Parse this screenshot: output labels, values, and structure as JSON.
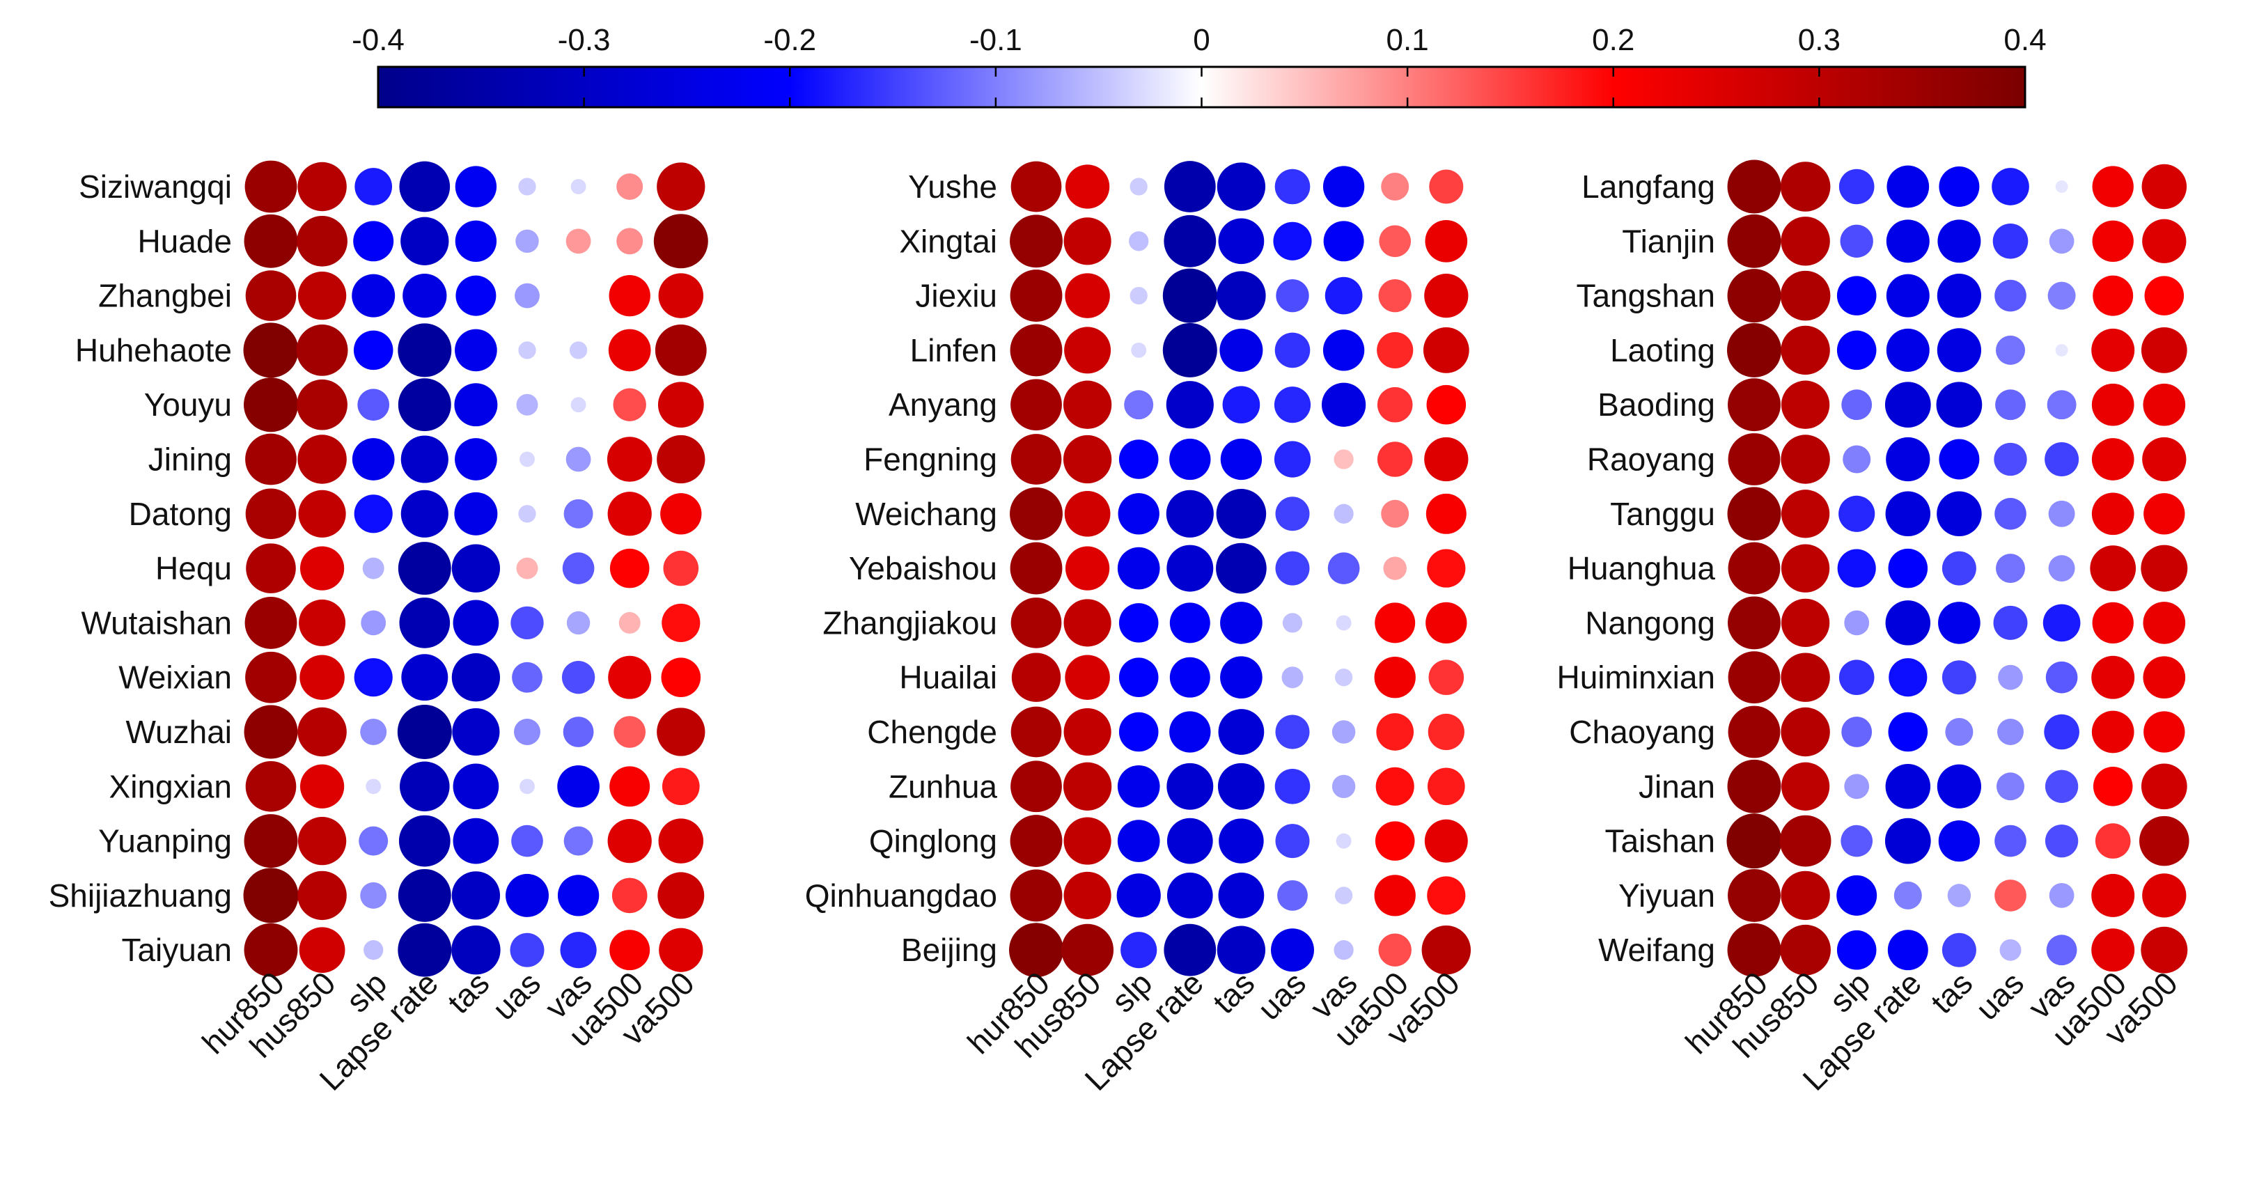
{
  "chart_data": {
    "type": "bubble-correlation-matrix",
    "title": "",
    "colorbar": {
      "range": [
        -0.4,
        0.4
      ],
      "ticks": [
        "-0.4",
        "-0.3",
        "-0.2",
        "-0.1",
        "0",
        "0.1",
        "0.2",
        "0.3",
        "0.4"
      ],
      "tick_values": [
        -0.4,
        -0.3,
        -0.2,
        -0.1,
        0,
        0.1,
        0.2,
        0.3,
        0.4
      ],
      "colors": {
        "negative_end": "#00008a",
        "negative_mid": "#0000ff",
        "neutral": "#ffffff",
        "positive_mid": "#ff0000",
        "positive_end": "#7a0000"
      },
      "legend_position": "top"
    },
    "variables": [
      "hur850",
      "hus850",
      "slp",
      "Lapse rate",
      "tas",
      "uas",
      "vas",
      "ua500",
      "va500"
    ],
    "panels": [
      {
        "name": "left",
        "stations": [
          "Siziwangqi",
          "Huade",
          "Zhangbei",
          "Huhehaote",
          "Youyu",
          "Jining",
          "Datong",
          "Hequ",
          "Wutaishan",
          "Weixian",
          "Wuzhai",
          "Xingxian",
          "Yuanping",
          "Shijiazhuang",
          "Taiyuan"
        ],
        "values": [
          [
            0.35,
            0.31,
            -0.18,
            -0.33,
            -0.22,
            -0.04,
            -0.03,
            0.09,
            0.3
          ],
          [
            0.37,
            0.33,
            -0.21,
            -0.3,
            -0.22,
            -0.07,
            0.08,
            0.09,
            0.38
          ],
          [
            0.33,
            0.3,
            -0.24,
            -0.25,
            -0.21,
            -0.08,
            0.0,
            0.22,
            0.26
          ],
          [
            0.39,
            0.34,
            -0.2,
            -0.37,
            -0.23,
            -0.04,
            -0.04,
            0.23,
            0.34
          ],
          [
            0.38,
            0.33,
            -0.13,
            -0.36,
            -0.24,
            -0.06,
            -0.03,
            0.14,
            0.27
          ],
          [
            0.34,
            0.31,
            -0.23,
            -0.29,
            -0.23,
            -0.03,
            -0.08,
            0.26,
            0.3
          ],
          [
            0.33,
            0.29,
            -0.19,
            -0.29,
            -0.24,
            -0.04,
            -0.11,
            0.25,
            0.22
          ],
          [
            0.32,
            0.25,
            -0.06,
            -0.36,
            -0.3,
            0.06,
            -0.13,
            0.2,
            0.16
          ],
          [
            0.35,
            0.28,
            -0.08,
            -0.33,
            -0.27,
            -0.14,
            -0.07,
            0.06,
            0.19
          ],
          [
            0.34,
            0.26,
            -0.19,
            -0.28,
            -0.3,
            -0.12,
            -0.14,
            0.24,
            0.2
          ],
          [
            0.37,
            0.31,
            -0.09,
            -0.38,
            -0.29,
            -0.09,
            -0.12,
            0.13,
            0.3
          ],
          [
            0.33,
            0.25,
            -0.03,
            -0.32,
            -0.27,
            -0.03,
            -0.23,
            0.21,
            0.18
          ],
          [
            0.37,
            0.3,
            -0.11,
            -0.34,
            -0.27,
            -0.13,
            -0.11,
            0.25,
            0.26
          ],
          [
            0.39,
            0.31,
            -0.09,
            -0.36,
            -0.3,
            -0.24,
            -0.22,
            0.16,
            0.28
          ],
          [
            0.37,
            0.27,
            -0.05,
            -0.37,
            -0.31,
            -0.15,
            -0.17,
            0.21,
            0.25
          ]
        ]
      },
      {
        "name": "middle",
        "stations": [
          "Yushe",
          "Xingtai",
          "Jiexiu",
          "Linfen",
          "Anyang",
          "Fengning",
          "Weichang",
          "Yebaishou",
          "Zhangjiakou",
          "Huailai",
          "Chengde",
          "Zunhua",
          "Qinglong",
          "Qinhuangdao",
          "Beijing"
        ],
        "values": [
          [
            0.33,
            0.25,
            -0.04,
            -0.34,
            -0.3,
            -0.16,
            -0.22,
            0.1,
            0.15
          ],
          [
            0.36,
            0.29,
            -0.05,
            -0.35,
            -0.27,
            -0.19,
            -0.21,
            0.13,
            0.23
          ],
          [
            0.35,
            0.26,
            -0.04,
            -0.38,
            -0.31,
            -0.14,
            -0.18,
            0.14,
            0.25
          ],
          [
            0.35,
            0.28,
            -0.03,
            -0.38,
            -0.24,
            -0.16,
            -0.22,
            0.17,
            0.27
          ],
          [
            0.34,
            0.3,
            -0.11,
            -0.29,
            -0.18,
            -0.17,
            -0.25,
            0.16,
            0.2
          ],
          [
            0.33,
            0.3,
            -0.2,
            -0.22,
            -0.22,
            -0.17,
            0.05,
            0.16,
            0.25
          ],
          [
            0.36,
            0.27,
            -0.22,
            -0.29,
            -0.32,
            -0.15,
            -0.05,
            0.1,
            0.21
          ],
          [
            0.35,
            0.25,
            -0.23,
            -0.28,
            -0.33,
            -0.15,
            -0.13,
            0.07,
            0.19
          ],
          [
            0.33,
            0.29,
            -0.2,
            -0.21,
            -0.23,
            -0.05,
            -0.03,
            0.21,
            0.22
          ],
          [
            0.31,
            0.26,
            -0.2,
            -0.21,
            -0.23,
            -0.06,
            -0.04,
            0.22,
            0.16
          ],
          [
            0.33,
            0.29,
            -0.2,
            -0.22,
            -0.27,
            -0.15,
            -0.07,
            0.18,
            0.17
          ],
          [
            0.34,
            0.3,
            -0.23,
            -0.28,
            -0.28,
            -0.16,
            -0.07,
            0.19,
            0.18
          ],
          [
            0.35,
            0.29,
            -0.23,
            -0.27,
            -0.26,
            -0.15,
            -0.03,
            0.2,
            0.24
          ],
          [
            0.35,
            0.29,
            -0.25,
            -0.27,
            -0.27,
            -0.12,
            -0.04,
            0.22,
            0.19
          ],
          [
            0.38,
            0.35,
            -0.17,
            -0.35,
            -0.3,
            -0.24,
            -0.05,
            0.14,
            0.31
          ]
        ]
      },
      {
        "name": "right",
        "stations": [
          "Langfang",
          "Tianjin",
          "Tangshan",
          "Laoting",
          "Baoding",
          "Raoyang",
          "Tanggu",
          "Huanghua",
          "Nangong",
          "Huiminxian",
          "Chaoyang",
          "Jinan",
          "Taishan",
          "Yiyuan",
          "Weifang"
        ],
        "values": [
          [
            0.37,
            0.32,
            -0.16,
            -0.23,
            -0.21,
            -0.18,
            -0.02,
            0.22,
            0.26
          ],
          [
            0.37,
            0.31,
            -0.14,
            -0.24,
            -0.24,
            -0.16,
            -0.08,
            0.22,
            0.25
          ],
          [
            0.37,
            0.32,
            -0.2,
            -0.24,
            -0.25,
            -0.13,
            -0.1,
            0.21,
            0.2
          ],
          [
            0.38,
            0.31,
            -0.2,
            -0.24,
            -0.25,
            -0.11,
            -0.02,
            0.24,
            0.27
          ],
          [
            0.36,
            0.3,
            -0.12,
            -0.27,
            -0.27,
            -0.12,
            -0.11,
            0.23,
            0.23
          ],
          [
            0.35,
            0.31,
            -0.1,
            -0.25,
            -0.21,
            -0.14,
            -0.15,
            0.23,
            0.25
          ],
          [
            0.37,
            0.3,
            -0.17,
            -0.26,
            -0.26,
            -0.13,
            -0.09,
            0.23,
            0.22
          ],
          [
            0.35,
            0.3,
            -0.19,
            -0.2,
            -0.15,
            -0.11,
            -0.09,
            0.27,
            0.28
          ],
          [
            0.36,
            0.3,
            -0.08,
            -0.26,
            -0.23,
            -0.15,
            -0.18,
            0.22,
            0.23
          ],
          [
            0.35,
            0.31,
            -0.16,
            -0.19,
            -0.15,
            -0.08,
            -0.13,
            0.24,
            0.23
          ],
          [
            0.35,
            0.31,
            -0.12,
            -0.2,
            -0.1,
            -0.09,
            -0.16,
            0.23,
            0.22
          ],
          [
            0.37,
            0.3,
            -0.08,
            -0.26,
            -0.25,
            -0.1,
            -0.14,
            0.2,
            0.27
          ],
          [
            0.39,
            0.34,
            -0.13,
            -0.27,
            -0.22,
            -0.13,
            -0.14,
            0.16,
            0.32
          ],
          [
            0.36,
            0.31,
            -0.21,
            -0.1,
            -0.07,
            0.13,
            -0.08,
            0.24,
            0.25
          ],
          [
            0.37,
            0.33,
            -0.2,
            -0.21,
            -0.15,
            -0.06,
            -0.12,
            0.24,
            0.28
          ]
        ]
      }
    ]
  }
}
